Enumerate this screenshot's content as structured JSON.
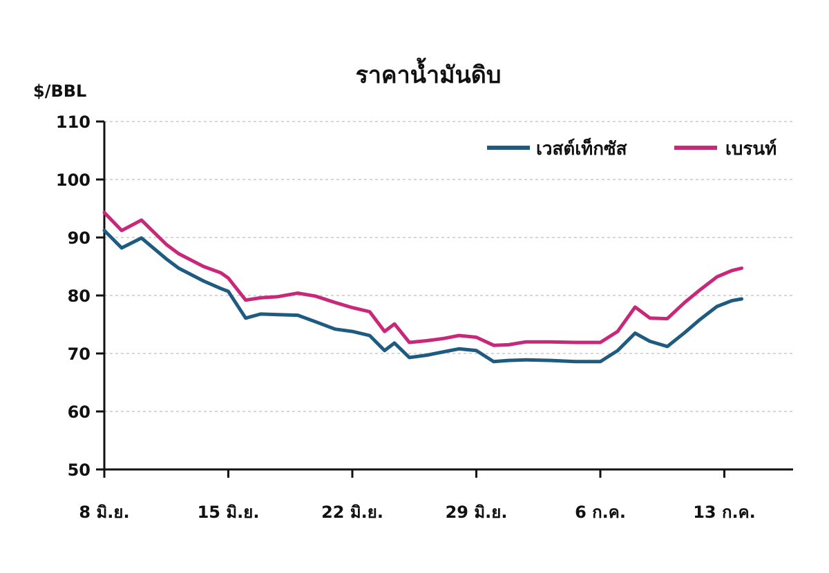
{
  "chart_data": {
    "type": "line",
    "title": "ราคาน้ำมันดิบ",
    "ylabel": "$/BBL",
    "xlabel": "",
    "ylim": [
      50,
      110
    ],
    "yticks": [
      50,
      60,
      70,
      80,
      90,
      100,
      110
    ],
    "xlim": [
      0,
      28
    ],
    "xticks": [
      {
        "x": 0,
        "label": "8 มิ.ย."
      },
      {
        "x": 5,
        "label": "15 มิ.ย."
      },
      {
        "x": 10,
        "label": "22 มิ.ย."
      },
      {
        "x": 15,
        "label": "29 มิ.ย."
      },
      {
        "x": 20,
        "label": "6 ก.ค."
      },
      {
        "x": 25,
        "label": "13 ก.ค."
      }
    ],
    "grid": "horizontal-dashed",
    "legend_position": "top-right",
    "series": [
      {
        "name": "เวสต์เท็กซัส",
        "color": "#1f5a80",
        "x": [
          0,
          0.7,
          1.5,
          2.5,
          3,
          4,
          4.7,
          5,
          5.7,
          6.3,
          7,
          7.8,
          8.5,
          9.3,
          10,
          10.7,
          11.3,
          11.7,
          12.3,
          13,
          13.7,
          14.3,
          15,
          15.7,
          16.3,
          17,
          18,
          19,
          20,
          20.7,
          21.4,
          22,
          22.7,
          23.4,
          24,
          24.7,
          25.3,
          25.7
        ],
        "values": [
          91.2,
          88.2,
          89.9,
          86.3,
          84.7,
          82.5,
          81.2,
          80.7,
          76.1,
          76.8,
          76.7,
          76.6,
          75.5,
          74.2,
          73.8,
          73.1,
          70.5,
          71.8,
          69.3,
          69.7,
          70.3,
          70.8,
          70.5,
          68.6,
          68.8,
          68.9,
          68.8,
          68.6,
          68.6,
          70.5,
          73.5,
          72.1,
          71.2,
          73.6,
          75.8,
          78.1,
          79.1,
          79.4
        ]
      },
      {
        "name": "เบรนท์",
        "color": "#c8287a",
        "x": [
          0,
          0.7,
          1.5,
          2.5,
          3,
          4,
          4.7,
          5,
          5.7,
          6.3,
          7,
          7.8,
          8.5,
          9.3,
          10,
          10.7,
          11.3,
          11.7,
          12.3,
          13,
          13.7,
          14.3,
          15,
          15.7,
          16.3,
          17,
          18,
          19,
          20,
          20.7,
          21.4,
          22,
          22.7,
          23.4,
          24,
          24.7,
          25.3,
          25.7
        ],
        "values": [
          94.3,
          91.2,
          93.0,
          88.8,
          87.2,
          85.0,
          83.9,
          83.0,
          79.2,
          79.6,
          79.8,
          80.4,
          79.9,
          78.8,
          77.9,
          77.2,
          73.8,
          75.1,
          71.9,
          72.2,
          72.6,
          73.1,
          72.8,
          71.4,
          71.5,
          72.0,
          72.0,
          71.9,
          71.9,
          73.8,
          78.0,
          76.1,
          76.0,
          78.8,
          80.9,
          83.2,
          84.3,
          84.7
        ]
      }
    ]
  }
}
